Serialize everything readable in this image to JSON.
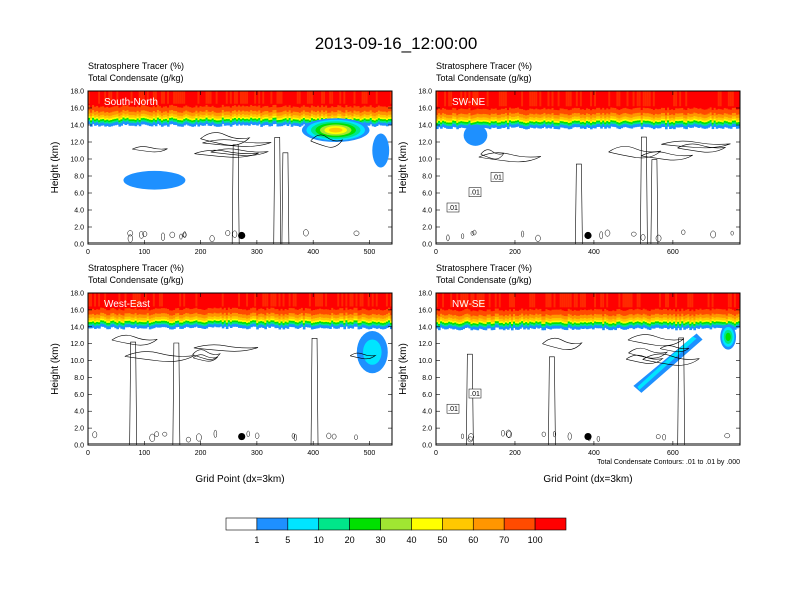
{
  "page": {
    "title": "2013-09-16_12:00:00"
  },
  "chart_data": [
    {
      "type": "heatmap",
      "panel_label": "South-North",
      "title_lines": [
        "Stratosphere Tracer   (%)",
        "Total Condensate   (g/kg)"
      ],
      "xlabel": "",
      "ylabel": "Height (km)",
      "xlim": [
        0,
        540
      ],
      "ylim": [
        0,
        18
      ],
      "xticks": [
        "0",
        "100",
        "200",
        "300",
        "400",
        "500"
      ],
      "yticks": [
        "0.0",
        "2.0",
        "4.0",
        "6.0",
        "8.0",
        "10.0",
        "12.0",
        "14.0",
        "16.0",
        "18.0"
      ],
      "tracer_top_km": 14.6,
      "features": [
        {
          "kind": "tracer_blob",
          "x_center": 118,
          "z_center": 7.5,
          "x_width": 110,
          "z_height": 2.2,
          "value": 5
        },
        {
          "kind": "tracer_blob",
          "x_center": 440,
          "z_center": 13.4,
          "x_width": 120,
          "z_height": 2.8,
          "value": 60
        },
        {
          "kind": "tracer_blob",
          "x_center": 520,
          "z_center": 11.0,
          "x_width": 30,
          "z_height": 4.0,
          "value": 5
        }
      ],
      "contour_labels": [],
      "marker": {
        "x": 273,
        "z": 1.0
      }
    },
    {
      "type": "heatmap",
      "panel_label": "SW-NE",
      "title_lines": [
        "Stratosphere Tracer   (%)",
        "Total Condensate   (g/kg)"
      ],
      "xlabel": "",
      "ylabel": "Height (km)",
      "xlim": [
        0,
        770
      ],
      "ylim": [
        0,
        18
      ],
      "xticks": [
        "0",
        "200",
        "400",
        "600"
      ],
      "yticks": [
        "0.0",
        "2.0",
        "4.0",
        "6.0",
        "8.0",
        "10.0",
        "12.0",
        "14.0",
        "16.0",
        "18.0"
      ],
      "tracer_top_km": 14.3,
      "features": [
        {
          "kind": "tracer_blob",
          "x_center": 100,
          "z_center": 12.8,
          "x_width": 60,
          "z_height": 2.5,
          "value": 5
        }
      ],
      "contour_labels": [
        ".01",
        ".01",
        ".01"
      ],
      "marker": {
        "x": 385,
        "z": 1.0
      }
    },
    {
      "type": "heatmap",
      "panel_label": "West-East",
      "title_lines": [
        "Stratosphere Tracer   (%)",
        "Total Condensate   (g/kg)"
      ],
      "xlabel": "Grid Point (dx=3km)",
      "ylabel": "Height (km)",
      "xlim": [
        0,
        540
      ],
      "ylim": [
        0,
        18
      ],
      "xticks": [
        "0",
        "100",
        "200",
        "300",
        "400",
        "500"
      ],
      "yticks": [
        "0.0",
        "2.0",
        "4.0",
        "6.0",
        "8.0",
        "10.0",
        "12.0",
        "14.0",
        "16.0",
        "18.0"
      ],
      "tracer_top_km": 14.5,
      "features": [
        {
          "kind": "tracer_blob",
          "x_center": 505,
          "z_center": 11.0,
          "x_width": 55,
          "z_height": 5.0,
          "value": 10
        }
      ],
      "contour_labels": [],
      "marker": {
        "x": 273,
        "z": 1.0
      }
    },
    {
      "type": "heatmap",
      "panel_label": "NW-SE",
      "title_lines": [
        "Stratosphere Tracer   (%)",
        "Total Condensate   (g/kg)"
      ],
      "xlabel": "Grid Point (dx=3km)",
      "ylabel": "Height (km)",
      "xlim": [
        0,
        770
      ],
      "ylim": [
        0,
        18
      ],
      "xticks": [
        "0",
        "200",
        "400",
        "600"
      ],
      "yticks": [
        "0.0",
        "2.0",
        "4.0",
        "6.0",
        "8.0",
        "10.0",
        "12.0",
        "14.0",
        "16.0",
        "18.0"
      ],
      "tracer_top_km": 14.4,
      "features": [
        {
          "kind": "tracer_band",
          "x_start": 500,
          "z_start": 7.0,
          "x_end": 660,
          "z_end": 12.5,
          "value": 5
        },
        {
          "kind": "tracer_blob",
          "x_center": 740,
          "z_center": 12.8,
          "x_width": 40,
          "z_height": 3.0,
          "value": 30
        }
      ],
      "contour_labels": [
        ".01",
        ".01"
      ],
      "marker": {
        "x": 385,
        "z": 1.0
      },
      "footnote": "Total Condensate Contours: .01 to .01 by .000"
    }
  ],
  "colorbar": {
    "labels": [
      "1",
      "5",
      "10",
      "20",
      "30",
      "40",
      "50",
      "60",
      "70",
      "100"
    ],
    "colors": [
      "#ffffff",
      "#1e90ff",
      "#00e5ff",
      "#00e68a",
      "#00e000",
      "#a0e632",
      "#ffff00",
      "#ffc800",
      "#ff9600",
      "#ff4b00",
      "#ff0000"
    ]
  }
}
